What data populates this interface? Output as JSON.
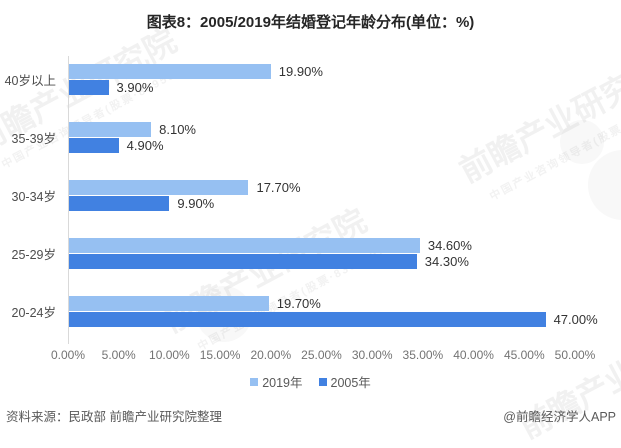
{
  "title": "图表8：2005/2019年结婚登记年龄分布(单位：%)",
  "chart_data": {
    "type": "bar",
    "orientation": "horizontal",
    "title": "图表8：2005/2019年结婚登记年龄分布(单位：%)",
    "unit": "%",
    "categories": [
      "40岁以上",
      "35-39岁",
      "30-34岁",
      "25-29岁",
      "20-24岁"
    ],
    "series": [
      {
        "name": "2019年",
        "color": "#96C0F2",
        "values": [
          19.9,
          8.1,
          17.7,
          34.6,
          19.7
        ],
        "labels": [
          "19.90%",
          "8.10%",
          "17.70%",
          "34.60%",
          "19.70%"
        ]
      },
      {
        "name": "2005年",
        "color": "#4181E1",
        "values": [
          3.9,
          4.9,
          9.9,
          34.3,
          47.0
        ],
        "labels": [
          "3.90%",
          "4.90%",
          "9.90%",
          "34.30%",
          "47.00%"
        ]
      }
    ],
    "xlim": [
      0,
      50
    ],
    "x_ticks": [
      "0.00%",
      "5.00%",
      "10.00%",
      "15.00%",
      "20.00%",
      "25.00%",
      "30.00%",
      "35.00%",
      "40.00%",
      "45.00%",
      "50.00%"
    ],
    "grid": false,
    "legend_position": "bottom"
  },
  "footer": {
    "source": "资料来源：民政部 前瞻产业研究院整理",
    "credit": "@前瞻经济学人APP"
  },
  "watermark": {
    "brand": "前瞻产业研究院",
    "tagline": "中国产业咨询领导者(股票·839599)"
  }
}
